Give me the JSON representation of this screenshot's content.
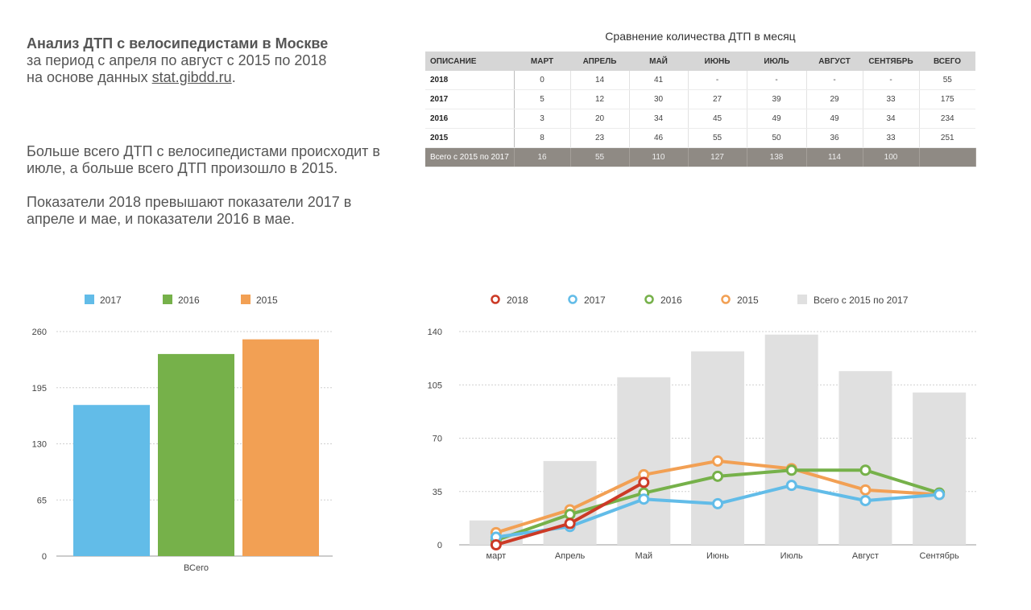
{
  "intro": {
    "title": "Анализ ДТП с велосипедистами в Москве",
    "line2": "за период с апреля по август с 2015 по 2018",
    "line3_prefix": "на основе данных ",
    "link": "stat.gibdd.ru",
    "line3_suffix": "."
  },
  "summary": {
    "p1": "Больше всего ДТП с велосипедистами происходит в июле, а больше всего ДТП произошло в 2015.",
    "p2": "Показатели 2018 превышают показатели 2017 в апреле и мае, и показатели 2016 в мае."
  },
  "table": {
    "title": "Сравнение количества ДТП в месяц",
    "headers": [
      "ОПИСАНИЕ",
      "МАРТ",
      "АПРЕЛЬ",
      "МАЙ",
      "ИЮНЬ",
      "ИЮЛЬ",
      "АВГУСТ",
      "СЕНТЯБРЬ",
      "ВСЕГО"
    ],
    "rows": [
      [
        "2018",
        "0",
        "14",
        "41",
        "-",
        "-",
        "-",
        "-",
        "55"
      ],
      [
        "2017",
        "5",
        "12",
        "30",
        "27",
        "39",
        "29",
        "33",
        "175"
      ],
      [
        "2016",
        "3",
        "20",
        "34",
        "45",
        "49",
        "49",
        "34",
        "234"
      ],
      [
        "2015",
        "8",
        "23",
        "46",
        "55",
        "50",
        "36",
        "33",
        "251"
      ]
    ],
    "total_row": [
      "Всего с 2015 по 2017",
      "16",
      "55",
      "110",
      "127",
      "138",
      "114",
      "100",
      ""
    ]
  },
  "chart_data": [
    {
      "type": "bar",
      "categories": [
        "ВСего"
      ],
      "series": [
        {
          "name": "2017",
          "values": [
            175
          ],
          "color": "#62bce8"
        },
        {
          "name": "2016",
          "values": [
            234
          ],
          "color": "#76b14a"
        },
        {
          "name": "2015",
          "values": [
            251
          ],
          "color": "#f2a054"
        }
      ],
      "yticks": [
        0,
        65,
        130,
        195,
        260
      ],
      "ylim": [
        0,
        260
      ],
      "grid": true,
      "legend": "top"
    },
    {
      "type": "line",
      "categories": [
        "март",
        "Апрель",
        "Май",
        "Июнь",
        "Июль",
        "Август",
        "Сентябрь"
      ],
      "bars": {
        "name": "Всего с 2015 по 2017",
        "values": [
          16,
          55,
          110,
          127,
          138,
          114,
          100
        ],
        "color": "#e0e0e0"
      },
      "series": [
        {
          "name": "2018",
          "values": [
            0,
            14,
            41,
            null,
            null,
            null,
            null
          ],
          "color": "#cc3a26"
        },
        {
          "name": "2017",
          "values": [
            5,
            12,
            30,
            27,
            39,
            29,
            33
          ],
          "color": "#62bce8"
        },
        {
          "name": "2016",
          "values": [
            3,
            20,
            34,
            45,
            49,
            49,
            34
          ],
          "color": "#76b14a"
        },
        {
          "name": "2015",
          "values": [
            8,
            23,
            46,
            55,
            50,
            36,
            33
          ],
          "color": "#f2a054"
        }
      ],
      "draw_order": [
        "2015",
        "2016",
        "2017",
        "2018"
      ],
      "yticks": [
        0,
        35,
        70,
        105,
        140
      ],
      "ylim": [
        0,
        140
      ],
      "grid": true,
      "legend": "top"
    }
  ]
}
